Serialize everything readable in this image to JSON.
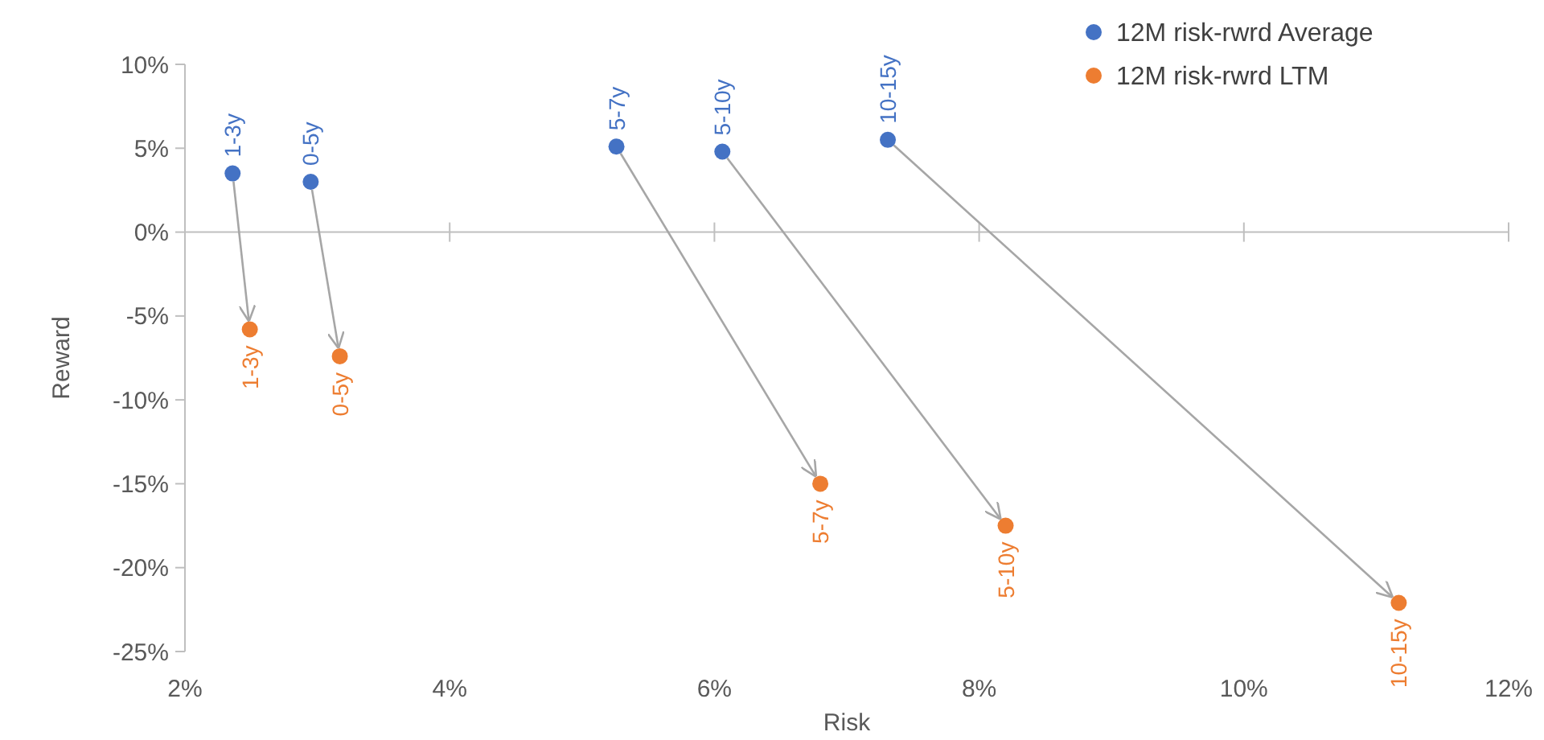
{
  "chart_data": {
    "type": "scatter",
    "xlabel": "Risk",
    "ylabel": "Reward",
    "xlim": [
      2,
      12
    ],
    "xticks": [
      {
        "value": 2,
        "label": "2%"
      },
      {
        "value": 4,
        "label": "4%"
      },
      {
        "value": 6,
        "label": "6%"
      },
      {
        "value": 8,
        "label": "8%"
      },
      {
        "value": 10,
        "label": "10%"
      },
      {
        "value": 12,
        "label": "12%"
      }
    ],
    "ylim": [
      -25,
      10
    ],
    "yticks": [
      {
        "value": -25,
        "label": "-25%"
      },
      {
        "value": -20,
        "label": "-20%"
      },
      {
        "value": -15,
        "label": "-15%"
      },
      {
        "value": -10,
        "label": "-10%"
      },
      {
        "value": -5,
        "label": "-5%"
      },
      {
        "value": 0,
        "label": "0%"
      },
      {
        "value": 5,
        "label": "5%"
      },
      {
        "value": 10,
        "label": "10%"
      }
    ],
    "legend": "top right",
    "marker": "circle",
    "series": [
      {
        "name": "12M risk-rwrd Average",
        "color": "#4472c4",
        "x": [
          2.36,
          2.95,
          5.26,
          6.06,
          7.31
        ],
        "values": [
          3.5,
          3.0,
          5.1,
          4.8,
          5.5
        ],
        "value_labels": [
          "1-3y",
          "0-5y",
          "5-7y",
          "5-10y",
          "10-15y"
        ]
      },
      {
        "name": "12M risk-rwrd LTM",
        "color": "#ed7d31",
        "x": [
          2.49,
          3.17,
          6.8,
          8.2,
          11.17
        ],
        "values": [
          -5.8,
          -7.4,
          -15.0,
          -17.5,
          -22.1
        ],
        "value_labels": [
          "1-3y",
          "0-5y",
          "5-7y",
          "5-10y",
          "10-15y"
        ]
      }
    ]
  }
}
